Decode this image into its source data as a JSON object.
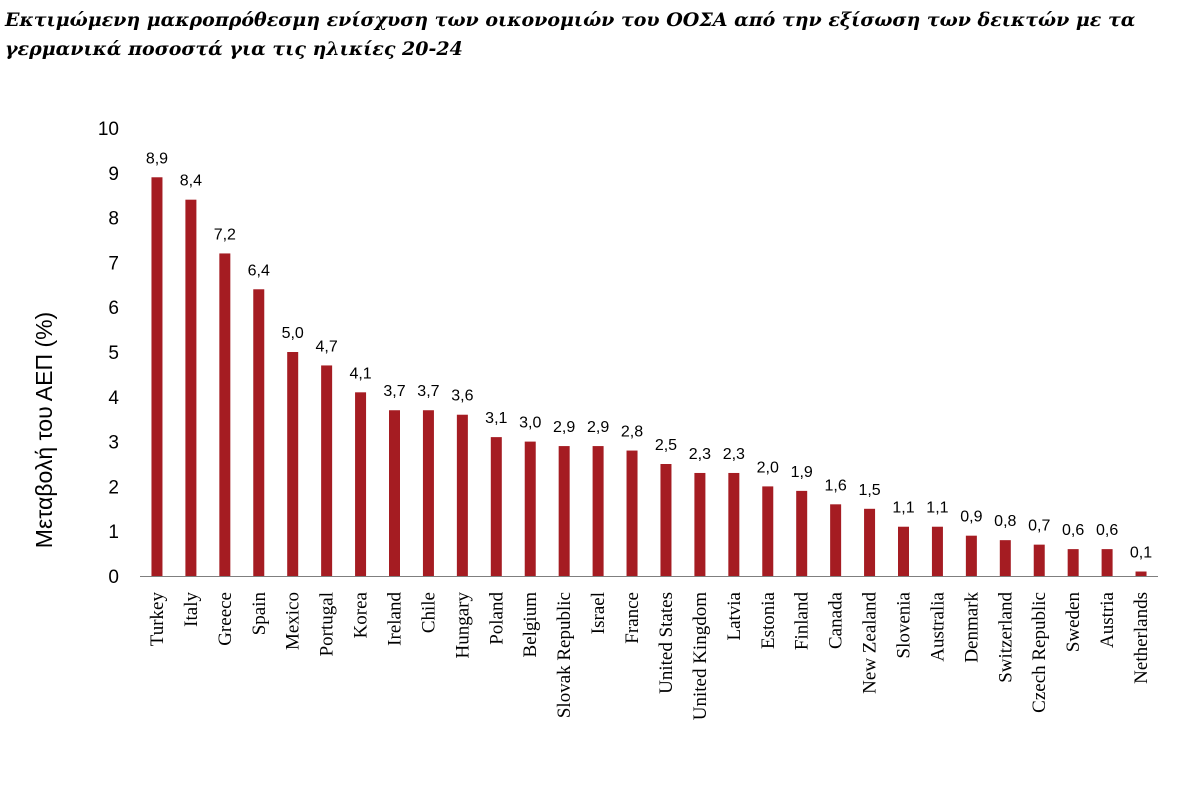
{
  "chart_data": {
    "type": "bar",
    "title": "Εκτιμώμενη μακροπρόθεσμη ενίσχυση των οικονομιών του ΟΟΣΑ από την εξίσωση των δεικτών με τα γερμανικά ποσοστά για τις ηλικίες 20-24",
    "xlabel": "",
    "ylabel": "Μεταβολή του ΑΕΠ (%)",
    "ylim": [
      0,
      10
    ],
    "yticks": [
      0,
      1,
      2,
      3,
      4,
      5,
      6,
      7,
      8,
      9,
      10
    ],
    "grid": false,
    "bar_color": "#a51c22",
    "categories": [
      "Turkey",
      "Italy",
      "Greece",
      "Spain",
      "Mexico",
      "Portugal",
      "Korea",
      "Ireland",
      "Chile",
      "Hungary",
      "Poland",
      "Belgium",
      "Slovak Republic",
      "Israel",
      "France",
      "United States",
      "United Kingdom",
      "Latvia",
      "Estonia",
      "Finland",
      "Canada",
      "New Zealand",
      "Slovenia",
      "Australia",
      "Denmark",
      "Switzerland",
      "Czech Republic",
      "Sweden",
      "Austria",
      "Netherlands"
    ],
    "values": [
      8.9,
      8.4,
      7.2,
      6.4,
      5.0,
      4.7,
      4.1,
      3.7,
      3.7,
      3.6,
      3.1,
      3.0,
      2.9,
      2.9,
      2.8,
      2.5,
      2.3,
      2.3,
      2.0,
      1.9,
      1.6,
      1.5,
      1.1,
      1.1,
      0.9,
      0.8,
      0.7,
      0.6,
      0.6,
      0.1
    ],
    "value_labels": [
      "8,9",
      "8,4",
      "7,2",
      "6,4",
      "5,0",
      "4,7",
      "4,1",
      "3,7",
      "3,7",
      "3,6",
      "3,1",
      "3,0",
      "2,9",
      "2,9",
      "2,8",
      "2,5",
      "2,3",
      "2,3",
      "2,0",
      "1,9",
      "1,6",
      "1,5",
      "1,1",
      "1,1",
      "0,9",
      "0,8",
      "0,7",
      "0,6",
      "0,6",
      "0,1"
    ]
  }
}
